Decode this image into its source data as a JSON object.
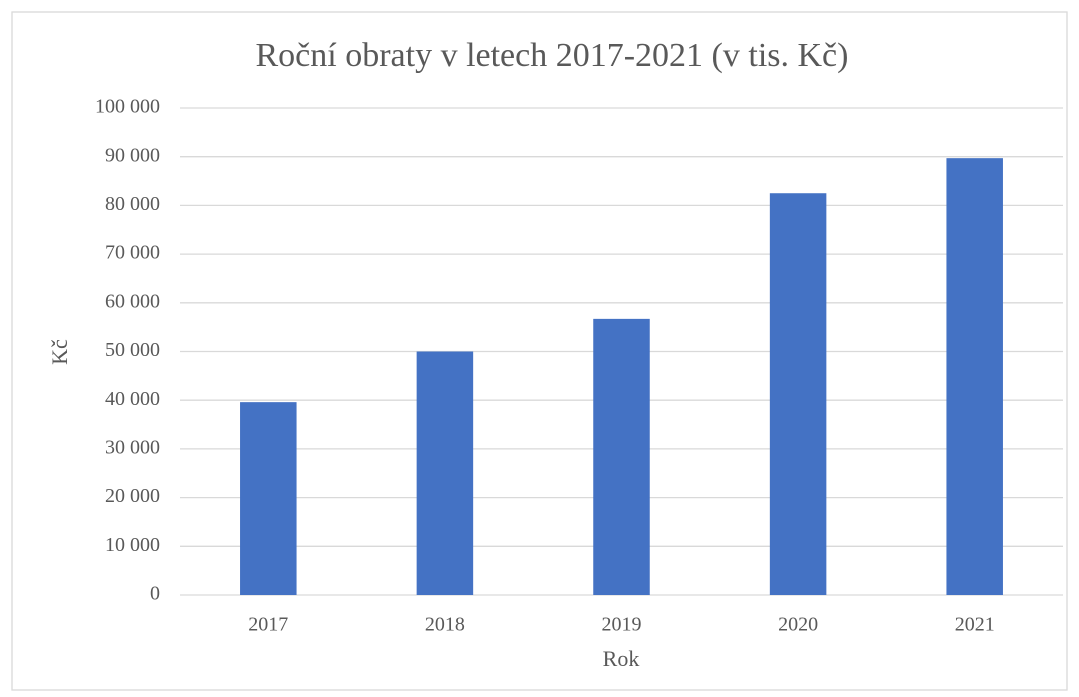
{
  "chart_data": {
    "type": "bar",
    "title": "Roční obraty v letech 2017-2021 (v tis. Kč)",
    "x_label": "Rok",
    "y_label": "Kč",
    "categories": [
      "2017",
      "2018",
      "2019",
      "2020",
      "2021"
    ],
    "values": [
      39600,
      50000,
      56700,
      82500,
      89700
    ],
    "color": "#4472c4",
    "ylim": [
      0,
      100000
    ],
    "yticks": [
      0,
      {
        "value": 10000,
        "label": "10 000"
      },
      {
        "value": 20000,
        "label": "20 000"
      },
      {
        "value": 30000,
        "label": "30 000"
      },
      {
        "value": 40000,
        "label": "40 000"
      },
      {
        "value": 50000,
        "label": "50 000"
      },
      {
        "value": 60000,
        "label": "60 000"
      },
      {
        "value": 70000,
        "label": "70 000"
      },
      {
        "value": 80000,
        "label": "80 000"
      },
      {
        "value": 90000,
        "label": "90 000"
      },
      {
        "value": 100000,
        "label": "100 000"
      }
    ],
    "grid": true
  }
}
